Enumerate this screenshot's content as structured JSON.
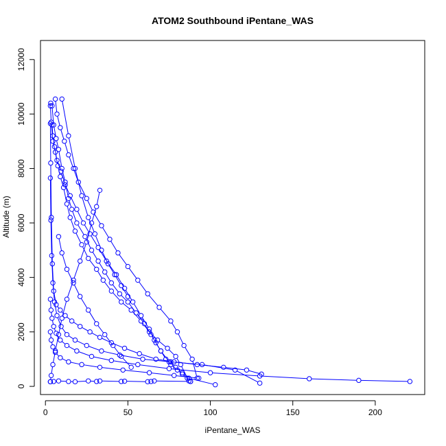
{
  "chart_data": {
    "type": "line",
    "title": "ATOM2 Southbound iPentane_WAS",
    "xlabel": "iPentane_WAS",
    "ylabel": "Altitude (m)",
    "xlim": [
      -3,
      230
    ],
    "ylim": [
      -300,
      12700
    ],
    "xticks": [
      0,
      50,
      100,
      150,
      200
    ],
    "yticks": [
      0,
      2000,
      4000,
      6000,
      8000,
      10000,
      12000
    ],
    "grid": false,
    "legend": "none",
    "colors": {
      "series": "#0000ff",
      "axis": "#000000",
      "background": "#ffffff"
    },
    "series": [
      {
        "marker": "open-circle",
        "x": [
          3.2,
          4.0,
          5.0,
          6.5,
          8.0,
          10.0,
          12.0,
          14.0,
          16.0,
          19.0,
          24.0,
          28.0,
          32.0,
          36.0,
          40.0,
          45.0,
          50.0,
          55.0,
          60.0,
          64.0,
          67.0,
          70.0,
          73.0,
          76.0,
          80.0,
          83.0,
          86.0,
          88.0
        ],
        "y": [
          10400,
          10300,
          9600,
          9100,
          8700,
          8000,
          7500,
          6900,
          6500,
          6000,
          5500,
          5000,
          4600,
          4200,
          3800,
          3400,
          3100,
          2700,
          2300,
          1900,
          1600,
          1300,
          1000,
          800,
          600,
          450,
          300,
          180
        ]
      },
      {
        "marker": "open-circle",
        "x": [
          3.0,
          3.5,
          4.5,
          6.0,
          7.5,
          9.0,
          11.0,
          13.0,
          15.0,
          18.0,
          22.0,
          26.0,
          31.0,
          35.0,
          40.0,
          46.0,
          52.0,
          58.0,
          63.0,
          68.0,
          74.0,
          79.0,
          82.0,
          87.0
        ],
        "y": [
          10300,
          9700,
          9000,
          8600,
          8100,
          7700,
          7300,
          6700,
          6200,
          5700,
          5200,
          4700,
          4300,
          3900,
          3500,
          3100,
          2800,
          2400,
          2000,
          1700,
          1400,
          1100,
          800,
          200
        ]
      },
      {
        "marker": "open-circle",
        "x": [
          6.0,
          7.0,
          9.0,
          11.5,
          14.0,
          17.0,
          20.0,
          25.0,
          29.0,
          34.0,
          39.0,
          44.0,
          50.0,
          56.0,
          62.0,
          69.0,
          76.0,
          80.0,
          84.0,
          89.0,
          92.0
        ],
        "y": [
          10550,
          10000,
          9500,
          9000,
          8500,
          8000,
          7500,
          6900,
          6400,
          5900,
          5400,
          4900,
          4400,
          3900,
          3400,
          2900,
          2400,
          2000,
          1500,
          1000,
          300
        ]
      },
      {
        "marker": "open-circle",
        "x": [
          4.0,
          4.5,
          5.5,
          7.0,
          9.5,
          12.0,
          15.0,
          19.0,
          23.0,
          27.0,
          32.0,
          37.0,
          43.0,
          48.0,
          53.0,
          58.0,
          63.0,
          66.0,
          70.0,
          75.0,
          79.0,
          83.0,
          87.0,
          103.0
        ],
        "y": [
          9600,
          9200,
          8800,
          8300,
          7900,
          7400,
          7000,
          6500,
          6000,
          5600,
          5100,
          4600,
          4100,
          3600,
          3100,
          2600,
          2100,
          1700,
          1300,
          900,
          700,
          500,
          300,
          60
        ]
      },
      {
        "marker": "open-circle",
        "x": [
          3.0,
          3.2,
          3.6,
          4.2,
          5.0,
          6.5,
          9.0,
          12.0,
          16.0,
          21.0,
          27.0,
          33.0,
          40.0,
          48.0,
          57.0,
          67.0,
          78.0,
          92.0,
          108.0,
          122.0,
          131.0
        ],
        "y": [
          9650,
          8200,
          6200,
          4500,
          3500,
          3000,
          2800,
          2600,
          2400,
          2200,
          2000,
          1800,
          1600,
          1400,
          1200,
          1000,
          900,
          800,
          700,
          600,
          450
        ]
      },
      {
        "marker": "open-circle",
        "x": [
          3.0,
          3.3,
          3.8,
          4.5,
          5.5,
          7.0,
          9.5,
          13.0,
          18.0,
          25.0,
          34.0,
          45.0,
          59.0,
          76.0,
          95.0,
          115.0,
          130.0
        ],
        "y": [
          7650,
          6100,
          4800,
          3800,
          3100,
          2600,
          2200,
          1900,
          1700,
          1500,
          1300,
          1150,
          1000,
          900,
          800,
          600,
          120
        ]
      },
      {
        "marker": "open-circle",
        "x": [
          3.0,
          3.4,
          4.0,
          5.0,
          6.5,
          9.0,
          13.0,
          19.0,
          28.0,
          40.0,
          56.0,
          75.0,
          100.0,
          130.0,
          160.0,
          190.0,
          221.0
        ],
        "y": [
          3200,
          2800,
          2500,
          2200,
          1950,
          1700,
          1500,
          1300,
          1100,
          950,
          800,
          650,
          500,
          380,
          280,
          220,
          180
        ]
      },
      {
        "marker": "open-circle",
        "x": [
          3.0,
          3.5,
          4.5,
          6.0,
          9.0,
          14.0,
          22.0,
          33.0,
          47.0,
          63.0,
          78.0,
          93.0
        ],
        "y": [
          2000,
          1700,
          1450,
          1250,
          1050,
          900,
          800,
          700,
          600,
          500,
          400,
          300
        ]
      },
      {
        "marker": "open-circle",
        "x": [
          33.0,
          31.0,
          28.0,
          25.0,
          21.0,
          17.0,
          13.0,
          10.0,
          8.0,
          6.0,
          4.5,
          3.5,
          3.0
        ],
        "y": [
          7200,
          6600,
          6000,
          5300,
          4600,
          3900,
          3200,
          2500,
          1900,
          1300,
          800,
          400,
          170
        ]
      },
      {
        "marker": "open-circle",
        "x": [
          3.0,
          5.0,
          8.0,
          14.0,
          18.0,
          26.0,
          31.0,
          33.0,
          46.0,
          48.0,
          62.0,
          64.0,
          66.0,
          88.0
        ],
        "y": [
          170,
          180,
          200,
          180,
          170,
          200,
          180,
          200,
          180,
          190,
          170,
          180,
          200,
          180
        ]
      },
      {
        "marker": "open-circle",
        "x": [
          10.0,
          14.0,
          18.0,
          22.0,
          26.0,
          30.0,
          34.0,
          38.0,
          42.0,
          46.0,
          50.0
        ],
        "y": [
          10550,
          9200,
          8000,
          7000,
          6200,
          5600,
          5000,
          4500,
          4100,
          3700,
          3300
        ]
      },
      {
        "marker": "open-circle",
        "x": [
          8.0,
          10.0,
          13.0,
          17.0,
          21.0,
          26.0,
          31.0,
          36.0,
          41.0,
          46.0,
          52.0
        ],
        "y": [
          5500,
          4900,
          4300,
          3800,
          3300,
          2800,
          2300,
          1900,
          1500,
          1100,
          700
        ]
      }
    ]
  }
}
